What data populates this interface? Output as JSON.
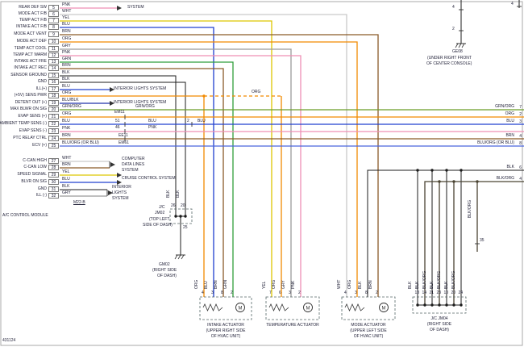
{
  "module": {
    "name": "A/C CONTROL MODULE",
    "doc": "431124"
  },
  "colors": {
    "PNK": "#ef8fb5",
    "WHT": "#c9c9c9",
    "YEL": "#ddc700",
    "BLU": "#2140cf",
    "BRN": "#8a5a28",
    "ORG": "#f28a00",
    "GRY": "#9a9a9a",
    "GRN": "#2f9e3a",
    "BLK": "#1c1c1c",
    "BLU/BLK": "#2233aa",
    "GRN/ORG": "#6a9e28",
    "BLU/ORG": "#4a66dd",
    "BLK/ORG": "#4a4332"
  },
  "left_pins": [
    {
      "pin": "5",
      "label": "REAR DEF SW",
      "color": "PNK"
    },
    {
      "pin": "6",
      "label": "MODE ACT F/B",
      "color": "WHT"
    },
    {
      "pin": "7",
      "label": "TEMP ACT F/B",
      "color": "YEL"
    },
    {
      "pin": "8",
      "label": "INTAKE ACT F/B",
      "color": "BLU"
    },
    {
      "pin": "9",
      "label": "MODE ACT VENT",
      "color": "BRN"
    },
    {
      "pin": "10",
      "label": "MODE ACT DEF",
      "color": "ORG"
    },
    {
      "pin": "11",
      "label": "TEMP ACT COOL",
      "color": "GRY"
    },
    {
      "pin": "12",
      "label": "TEMP ACT WARM",
      "color": "PNK"
    },
    {
      "pin": "13",
      "label": "INTAKE ACT FRE",
      "color": "GRN"
    },
    {
      "pin": "14",
      "label": "INTAKE ACT REC",
      "color": "BRN"
    },
    {
      "pin": "15",
      "label": "SENSOR GROUND",
      "color": "BLK"
    },
    {
      "pin": "16",
      "label": "GND",
      "color": "BLK"
    },
    {
      "pin": "17",
      "label": "ILL(+)",
      "color": "BLU"
    },
    {
      "pin": "18",
      "label": "(+5V) SENS PWR",
      "color": "ORG"
    },
    {
      "pin": "19",
      "label": "DETENT OUT (+)",
      "color": "BLU/BLK"
    },
    {
      "pin": "20",
      "label": "MAX BLWR ON SIG",
      "color": "GRN/ORG"
    },
    {
      "pin": "21",
      "label": "EVAP SENS (+)",
      "color": "ORG"
    },
    {
      "pin": "22",
      "label": "AMBIENT TEMP SENS (-)",
      "color": "BLU"
    },
    {
      "pin": "23",
      "label": "EVAP SENS (-)",
      "color": "PNK"
    },
    {
      "pin": "24",
      "label": "PTC RELAY CTRL",
      "color": "BRN"
    },
    {
      "pin": "25",
      "label": "ECV (+)",
      "color": "BLU/ORG (OR BLU)"
    },
    {
      "pin": "27",
      "label": "C-CAN HIGH",
      "color": "WHT"
    },
    {
      "pin": "28",
      "label": "C-CAN LOW",
      "color": "BRN"
    },
    {
      "pin": "29",
      "label": "SPEED SIGNAL",
      "color": "YEL"
    },
    {
      "pin": "30",
      "label": "BLVR ON SIG",
      "color": "BLU"
    },
    {
      "pin": "31",
      "label": "GND",
      "color": "BLK"
    },
    {
      "pin": "32",
      "label": "ILL (-)",
      "color": "GRY"
    }
  ],
  "annotations": {
    "system": "SYSTEM",
    "interior1": "INTERIOR LIGHTS SYSTEM",
    "interior2": "INTERIOR LIGHTS SYSTEM",
    "org_mid": "ORG",
    "grnorg_mid": "GRN/ORG",
    "em11": "EM11",
    "n51": "51",
    "blu_mid1": "BLU",
    "n2": "2",
    "blu_mid2": "BLU",
    "n46": "46",
    "pnk_mid": "PNK",
    "ee11": "EE11",
    "em61": "EM61",
    "comp1": "COMPUTER",
    "comp2": "DATA LINES",
    "comp3": "SYSTEM",
    "cruise": "CRUISE CONTROL SYSTEM",
    "int1": "INTERIOR",
    "int2": "LIGHTS",
    "int3": "SYSTEM",
    "m22b": "M22-B"
  },
  "right_edge": [
    {
      "label": "GRN/ORG",
      "pin": "7"
    },
    {
      "label": "ORG",
      "pin": "2"
    },
    {
      "label": "BLU",
      "pin": "3"
    },
    {
      "label": "BRN",
      "pin": "4"
    },
    {
      "label": "BLU/ORG (OR BLU)",
      "pin": "8"
    },
    {
      "label": "BLK",
      "pin": "6"
    },
    {
      "label": "BLK/ORG",
      "pin": "4"
    }
  ],
  "top_right": {
    "pin_top": "4",
    "pin_mid": "2",
    "ground": "GE08",
    "caption1": "(UNDER RIGHT FRONT",
    "caption2": "OF CENTER CONSOLE)",
    "corner_pin": "4"
  },
  "jm02": {
    "name1": "J/C",
    "name2": "JM02",
    "loc1": "(TOP LEFT",
    "loc2": "SIDE OF DASH)",
    "pins_top": [
      "26",
      "20"
    ],
    "pin_bottom": "25",
    "wire_labels": [
      "BLK",
      "BLK"
    ]
  },
  "gm02": {
    "name": "GM02",
    "loc1": "(RIGHT SIDE",
    "loc2": "OF DASH)"
  },
  "actuators": [
    {
      "name": "INTAKE ACTUATOR",
      "loc1": "(UPPER RIGHT SIDE",
      "loc2": "OF HVAC UNIT)",
      "pins": [
        "4",
        "3",
        "8",
        "2"
      ],
      "wires": [
        "ORG",
        "BLU",
        "BRN",
        "GRN"
      ]
    },
    {
      "name": "TEMPERATURE ACTUATOR",
      "loc1": "",
      "loc2": "",
      "pins": [
        "7",
        "6",
        "3",
        "2"
      ],
      "wires": [
        "YEL",
        "ORG",
        "GRY",
        "PNK"
      ]
    },
    {
      "name": "MODE ACTUATOR",
      "loc1": "(UPPER LEFT SIDE",
      "loc2": "OF HVAC UNIT)",
      "pins": [
        "4",
        "3",
        "8",
        "2"
      ],
      "wires": [
        "WHT",
        "ORG",
        "BLK",
        "BRN"
      ]
    }
  ],
  "jm04": {
    "name": "J/C JM04",
    "loc1": "(RIGHT SIDE",
    "loc2": "OF DASH)",
    "pins": [
      "18",
      "14",
      "21",
      "23",
      "10",
      "20",
      "24"
    ],
    "wires": [
      "BLK",
      "BLK",
      "BLK/ORG",
      "BLK",
      "BLK/ORG",
      "BLK",
      "BLK/ORG"
    ],
    "branch_pin": "35",
    "branch_label": "BLK/ORG"
  },
  "misc": {
    "motor": "M"
  }
}
